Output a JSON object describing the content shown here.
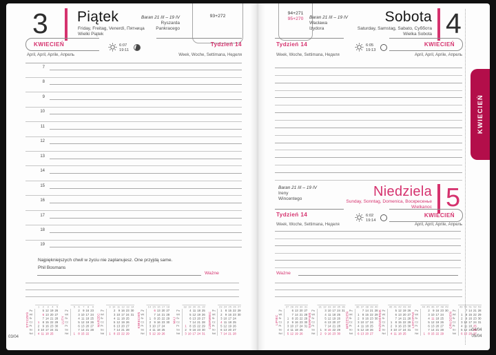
{
  "colors": {
    "accent": "#d5326e",
    "tab": "#b30e4a",
    "line_dark": "#a9a9a9",
    "line_light": "#c6c6c6",
    "paper": "#fdfdfd"
  },
  "side_tab": {
    "label": "KWIECIEŃ"
  },
  "icons": {
    "sun": "sun-icon",
    "moon_friday": "moon-waxing-gibbous-icon",
    "moon_weekend": "moon-full-icon"
  },
  "left_page": {
    "day_number": "3",
    "day_name": "Piątek",
    "day_translations": "Friday, Freitag, Venerdì, Пятница",
    "holiday": "Wielki Piątek",
    "zodiac": "Baran 21 III – 19 IV",
    "name_day_1": "Ryszarda",
    "name_day_2": "Pankracego",
    "day_of_year": "93+272",
    "month_label": "KWIECIEŃ",
    "month_translations": "April, April, Aprile, Апрель",
    "week_label": "Tydzień 14",
    "week_translations": "Week, Woche, Settimana, Неделя",
    "sunrise": "6:07",
    "sunset": "19:11",
    "hours": [
      "7",
      "8",
      "9",
      "10",
      "11",
      "12",
      "13",
      "14",
      "15",
      "16",
      "17",
      "18",
      "19"
    ],
    "quote": "Najpiękniejszych chwil w życiu nie zaplanujesz. One przyjdą same.",
    "quote_author": "Phil Bosmans",
    "important_label": "Ważne",
    "page_corner": "03/04"
  },
  "right_page": {
    "saturday": {
      "day_number": "4",
      "day_name": "Sobota",
      "day_translations": "Saturday, Samstag, Sabato, Суббота",
      "holiday": "Wielka Sobota",
      "zodiac": "Baran 21 III – 19 IV",
      "name_day_1": "Wacława",
      "name_day_2": "Izydora",
      "day_of_year": "94+271",
      "day_of_year_sunday": "95+270",
      "week_label": "Tydzień 14",
      "week_translations": "Week, Woche, Settimana, Неделя",
      "sunrise": "6:05",
      "sunset": "19:13",
      "month_label": "KWIECIEŃ",
      "month_translations": "April, April, Aprile, Апрель"
    },
    "sunday": {
      "day_number": "5",
      "day_name": "Niedziela",
      "day_translations": "Sunday, Sonntag, Domenica, Воскресенье",
      "holiday": "Wielkanoc",
      "zodiac": "Baran 21 III – 19 IV",
      "name_day_1": "Ireny",
      "name_day_2": "Wincentego",
      "week_label": "Tydzień 14",
      "week_translations": "Week, Woche, Settimana, Неделя",
      "sunrise": "6:02",
      "sunset": "19:14",
      "month_label": "KWIECIEŃ",
      "month_translations": "April, April, Aprile, Апрель",
      "important_label": "Ważne"
    },
    "page_corner_top": "04/04",
    "page_corner_bottom": "05/04"
  },
  "mini_calendars": {
    "weekday_abbr": [
      "Pn",
      "Wt",
      "Śr",
      "Cz",
      "Pt",
      "So",
      "Nd"
    ],
    "left_months": [
      {
        "name": "STYCZEŃ",
        "week_numbers": [
          "1",
          "2",
          "3",
          "4",
          "5"
        ],
        "holidays": [
          1,
          6
        ],
        "rows": [
          [
            "",
            "5",
            "12",
            "19",
            "26"
          ],
          [
            "",
            "6",
            "13",
            "20",
            "27"
          ],
          [
            "",
            "7",
            "14",
            "21",
            "28"
          ],
          [
            "1",
            "8",
            "15",
            "22",
            "29"
          ],
          [
            "2",
            "9",
            "16",
            "23",
            "30"
          ],
          [
            "3",
            "10",
            "17",
            "24",
            "31"
          ],
          [
            "4",
            "11",
            "18",
            "25",
            ""
          ]
        ]
      },
      {
        "name": "LUTY",
        "week_numbers": [
          "5",
          "6",
          "7",
          "8",
          "9"
        ],
        "holidays": [],
        "rows": [
          [
            "",
            "2",
            "9",
            "16",
            "23"
          ],
          [
            "",
            "3",
            "10",
            "17",
            "24"
          ],
          [
            "",
            "4",
            "11",
            "18",
            "25"
          ],
          [
            "",
            "5",
            "12",
            "19",
            "26"
          ],
          [
            "",
            "6",
            "13",
            "20",
            "27"
          ],
          [
            "",
            "7",
            "14",
            "21",
            "28"
          ],
          [
            "1",
            "8",
            "15",
            "22",
            ""
          ]
        ]
      },
      {
        "name": "MARZEC",
        "week_numbers": [
          "9",
          "10",
          "11",
          "12",
          "13",
          "14"
        ],
        "holidays": [],
        "rows": [
          [
            "",
            "2",
            "9",
            "16",
            "23",
            "30"
          ],
          [
            "",
            "3",
            "10",
            "17",
            "24",
            "31"
          ],
          [
            "",
            "4",
            "11",
            "18",
            "25",
            ""
          ],
          [
            "",
            "5",
            "12",
            "19",
            "26",
            ""
          ],
          [
            "",
            "6",
            "13",
            "20",
            "27",
            ""
          ],
          [
            "",
            "7",
            "14",
            "21",
            "28",
            ""
          ],
          [
            "1",
            "8",
            "15",
            "22",
            "29",
            ""
          ]
        ]
      },
      {
        "name": "KWIECIEŃ",
        "week_numbers": [
          "14",
          "15",
          "16",
          "17",
          "18"
        ],
        "holidays": [
          5,
          6
        ],
        "rows": [
          [
            "",
            "6",
            "13",
            "20",
            "27"
          ],
          [
            "",
            "7",
            "14",
            "21",
            "28"
          ],
          [
            "1",
            "8",
            "15",
            "22",
            "29"
          ],
          [
            "2",
            "9",
            "16",
            "23",
            "30"
          ],
          [
            "3",
            "10",
            "17",
            "24",
            ""
          ],
          [
            "4",
            "11",
            "18",
            "25",
            ""
          ],
          [
            "5",
            "12",
            "19",
            "26",
            ""
          ]
        ]
      },
      {
        "name": "MAJ",
        "week_numbers": [
          "18",
          "19",
          "20",
          "21",
          "22"
        ],
        "holidays": [
          1,
          3
        ],
        "rows": [
          [
            "",
            "4",
            "11",
            "18",
            "25"
          ],
          [
            "",
            "5",
            "12",
            "19",
            "26"
          ],
          [
            "",
            "6",
            "13",
            "20",
            "27"
          ],
          [
            "",
            "7",
            "14",
            "21",
            "28"
          ],
          [
            "1",
            "8",
            "15",
            "22",
            "29"
          ],
          [
            "2",
            "9",
            "16",
            "23",
            "30"
          ],
          [
            "3",
            "10",
            "17",
            "24",
            "31"
          ]
        ]
      },
      {
        "name": "CZERWIEC",
        "week_numbers": [
          "23",
          "24",
          "25",
          "26",
          "27"
        ],
        "holidays": [
          4
        ],
        "rows": [
          [
            "1",
            "8",
            "15",
            "22",
            "29"
          ],
          [
            "2",
            "9",
            "16",
            "23",
            "30"
          ],
          [
            "3",
            "10",
            "17",
            "24",
            ""
          ],
          [
            "4",
            "11",
            "18",
            "25",
            ""
          ],
          [
            "5",
            "12",
            "19",
            "26",
            ""
          ],
          [
            "6",
            "13",
            "20",
            "27",
            ""
          ],
          [
            "7",
            "14",
            "21",
            "28",
            ""
          ]
        ]
      }
    ],
    "right_months": [
      {
        "name": "LIPIEC",
        "week_numbers": [
          "27",
          "28",
          "29",
          "30",
          "31"
        ],
        "holidays": [],
        "rows": [
          [
            "",
            "6",
            "13",
            "20",
            "27"
          ],
          [
            "",
            "7",
            "14",
            "21",
            "28"
          ],
          [
            "1",
            "8",
            "15",
            "22",
            "29"
          ],
          [
            "2",
            "9",
            "16",
            "23",
            "30"
          ],
          [
            "3",
            "10",
            "17",
            "24",
            "31"
          ],
          [
            "4",
            "11",
            "18",
            "25",
            ""
          ],
          [
            "5",
            "12",
            "19",
            "26",
            ""
          ]
        ]
      },
      {
        "name": "SIERPIEŃ",
        "week_numbers": [
          "31",
          "32",
          "33",
          "34",
          "35",
          "36"
        ],
        "holidays": [
          15
        ],
        "rows": [
          [
            "",
            "3",
            "10",
            "17",
            "24",
            "31"
          ],
          [
            "",
            "4",
            "11",
            "18",
            "25",
            ""
          ],
          [
            "",
            "5",
            "12",
            "19",
            "26",
            ""
          ],
          [
            "",
            "6",
            "13",
            "20",
            "27",
            ""
          ],
          [
            "",
            "7",
            "14",
            "21",
            "28",
            ""
          ],
          [
            "1",
            "8",
            "15",
            "22",
            "29",
            ""
          ],
          [
            "2",
            "9",
            "16",
            "23",
            "30",
            ""
          ]
        ]
      },
      {
        "name": "WRZESIEŃ",
        "week_numbers": [
          "36",
          "37",
          "38",
          "39",
          "40"
        ],
        "holidays": [],
        "rows": [
          [
            "",
            "7",
            "14",
            "21",
            "28"
          ],
          [
            "1",
            "8",
            "15",
            "22",
            "29"
          ],
          [
            "2",
            "9",
            "16",
            "23",
            "30"
          ],
          [
            "3",
            "10",
            "17",
            "24",
            ""
          ],
          [
            "4",
            "11",
            "18",
            "25",
            ""
          ],
          [
            "5",
            "12",
            "19",
            "26",
            ""
          ],
          [
            "6",
            "13",
            "20",
            "27",
            ""
          ]
        ]
      },
      {
        "name": "PAŹDZIERNIK",
        "week_numbers": [
          "40",
          "41",
          "42",
          "43",
          "44"
        ],
        "holidays": [],
        "rows": [
          [
            "",
            "5",
            "12",
            "19",
            "26"
          ],
          [
            "",
            "6",
            "13",
            "20",
            "27"
          ],
          [
            "",
            "7",
            "14",
            "21",
            "28"
          ],
          [
            "1",
            "8",
            "15",
            "22",
            "29"
          ],
          [
            "2",
            "9",
            "16",
            "23",
            "30"
          ],
          [
            "3",
            "10",
            "17",
            "24",
            "31"
          ],
          [
            "4",
            "11",
            "18",
            "25",
            ""
          ]
        ]
      },
      {
        "name": "LISTOPAD",
        "week_numbers": [
          "44",
          "45",
          "46",
          "47",
          "48",
          "49"
        ],
        "holidays": [
          1,
          11
        ],
        "rows": [
          [
            "",
            "2",
            "9",
            "16",
            "23",
            "30"
          ],
          [
            "",
            "3",
            "10",
            "17",
            "24",
            ""
          ],
          [
            "",
            "4",
            "11",
            "18",
            "25",
            ""
          ],
          [
            "",
            "5",
            "12",
            "19",
            "26",
            ""
          ],
          [
            "",
            "6",
            "13",
            "20",
            "27",
            ""
          ],
          [
            "",
            "7",
            "14",
            "21",
            "28",
            ""
          ],
          [
            "1",
            "8",
            "15",
            "22",
            "29",
            ""
          ]
        ]
      },
      {
        "name": "GRUDZIEŃ",
        "week_numbers": [
          "49",
          "50",
          "51",
          "52",
          "53"
        ],
        "holidays": [
          25,
          26
        ],
        "rows": [
          [
            "",
            "7",
            "14",
            "21",
            "28"
          ],
          [
            "1",
            "8",
            "15",
            "22",
            "29"
          ],
          [
            "2",
            "9",
            "16",
            "23",
            "30"
          ],
          [
            "3",
            "10",
            "17",
            "24",
            "31"
          ],
          [
            "4",
            "11",
            "18",
            "25",
            ""
          ],
          [
            "5",
            "12",
            "19",
            "26",
            ""
          ],
          [
            "6",
            "13",
            "20",
            "27",
            ""
          ]
        ]
      }
    ]
  }
}
